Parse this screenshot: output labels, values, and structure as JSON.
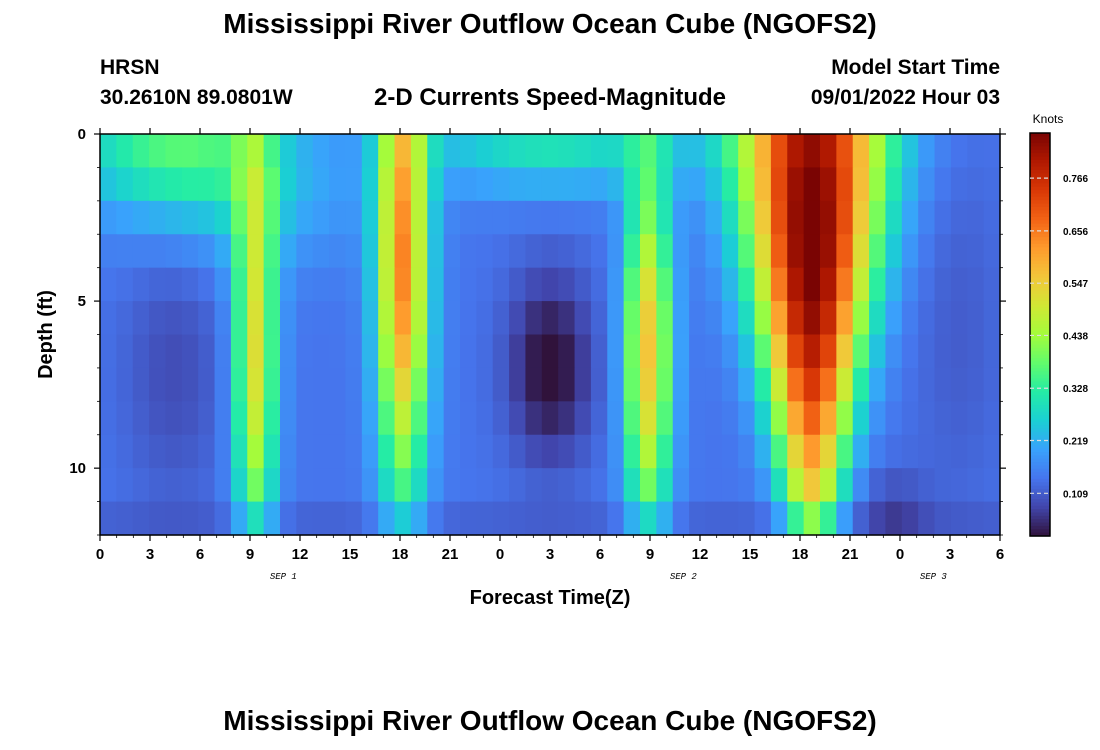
{
  "header": {
    "title": "Mississippi River Outflow Ocean Cube (NGOFS2)",
    "station": "HRSN",
    "coordinates": "30.2610N  89.0801W",
    "plot_title": "2-D Currents Speed-Magnitude",
    "model_start_label": "Model Start Time",
    "model_start_value": "09/01/2022 Hour 03"
  },
  "footer": {
    "title_repeat": "Mississippi River Outflow Ocean Cube (NGOFS2)"
  },
  "colors": {
    "colormap": [
      "#30123b",
      "#4145ab",
      "#4675ed",
      "#39a2fc",
      "#1bcfd4",
      "#24eca6",
      "#61fc6c",
      "#a4fc3b",
      "#d1e834",
      "#f3c63a",
      "#fe9b2d",
      "#f36315",
      "#d93806",
      "#b11901",
      "#7a0403"
    ]
  },
  "chart_data": {
    "type": "heatmap",
    "title": "2-D Currents Speed-Magnitude",
    "xlabel": "Forecast Time(Z)",
    "ylabel": "Depth (ft)",
    "x_range": [
      0,
      54
    ],
    "y_range": [
      0,
      12
    ],
    "x_ticks": [
      0,
      3,
      6,
      9,
      12,
      15,
      18,
      21,
      24,
      27,
      30,
      33,
      36,
      39,
      42,
      45,
      48,
      51,
      54
    ],
    "x_tick_labels": [
      "0",
      "3",
      "6",
      "9",
      "12",
      "15",
      "18",
      "21",
      "0",
      "3",
      "6",
      "9",
      "12",
      "15",
      "18",
      "21",
      "0",
      "3",
      "6"
    ],
    "y_ticks": [
      0,
      5,
      10
    ],
    "y_tick_labels": [
      "0",
      "5",
      "10"
    ],
    "date_labels": [
      {
        "hour": 11,
        "label": "SEP 1"
      },
      {
        "hour": 35,
        "label": "SEP 2"
      },
      {
        "hour": 50,
        "label": "SEP 3"
      }
    ],
    "colorbar": {
      "label": "Knots",
      "min": 0.02,
      "max": 0.86,
      "ticks": [
        0.109,
        0.219,
        0.328,
        0.438,
        0.547,
        0.656,
        0.766
      ],
      "tick_labels": [
        "0.109",
        "0.219",
        "0.328",
        "0.438",
        "0.547",
        "0.656",
        "0.766"
      ]
    },
    "depth_levels": 12,
    "time_steps": 55,
    "features": [
      {
        "description": "surface band 1",
        "hour_center": 3,
        "depth_center": 0.3,
        "speed": 0.36
      },
      {
        "description": "ebb peak 1",
        "hour_center": 9,
        "depth_center": 6.5,
        "speed": 0.52
      },
      {
        "description": "ebb peak 2",
        "hour_center": 18,
        "depth_center": 4,
        "speed": 0.62
      },
      {
        "description": "minimum",
        "hour_center": 27,
        "depth_center": 7,
        "speed": 0.02
      },
      {
        "description": "ebb peak 3",
        "hour_center": 33,
        "depth_center": 6.5,
        "speed": 0.55
      },
      {
        "description": "ebb peak 4",
        "hour_center": 43,
        "depth_center": 2,
        "speed": 0.86
      },
      {
        "description": "late minimum",
        "hour_center": 48,
        "depth_center": 11.5,
        "speed": 0.02
      }
    ]
  }
}
